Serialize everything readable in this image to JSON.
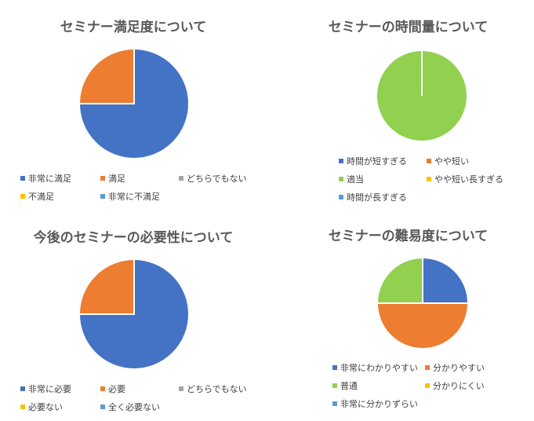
{
  "colors": {
    "blue": "#4472c4",
    "orange": "#ed7d31",
    "gray": "#a5a5a5",
    "yellow": "#ffc000",
    "lightblue": "#5b9bd5",
    "green": "#92d050"
  },
  "chart_data": [
    {
      "type": "pie",
      "title": "セミナー満足度について",
      "categories": [
        "非常に満足",
        "満足",
        "どちらでもない",
        "不満足",
        "非常に不満足"
      ],
      "values": [
        3,
        1,
        0,
        0,
        0
      ],
      "colors": [
        "#4472c4",
        "#ed7d31",
        "#a5a5a5",
        "#ffc000",
        "#5b9bd5"
      ],
      "legend_position": "bottom"
    },
    {
      "type": "pie",
      "title": "セミナーの時間量について",
      "categories": [
        "時間が短すぎる",
        "やや短い",
        "適当",
        "やや短い長すぎる",
        "時間が長すぎる"
      ],
      "values": [
        0,
        0,
        4,
        0,
        0
      ],
      "colors": [
        "#4472c4",
        "#ed7d31",
        "#92d050",
        "#ffc000",
        "#5b9bd5"
      ],
      "legend_position": "bottom"
    },
    {
      "type": "pie",
      "title": "今後のセミナーの必要性について",
      "categories": [
        "非常に必要",
        "必要",
        "どちらでもない",
        "必要ない",
        "全く必要ない"
      ],
      "values": [
        3,
        1,
        0,
        0,
        0
      ],
      "colors": [
        "#4472c4",
        "#ed7d31",
        "#a5a5a5",
        "#ffc000",
        "#5b9bd5"
      ],
      "legend_position": "bottom"
    },
    {
      "type": "pie",
      "title": "セミナーの難易度について",
      "categories": [
        "非常にわかりやすい",
        "分かりやすい",
        "普通",
        "分かりにくい",
        "非常に分かりずらい"
      ],
      "values": [
        1,
        2,
        1,
        0,
        0
      ],
      "colors": [
        "#4472c4",
        "#ed7d31",
        "#92d050",
        "#ffc000",
        "#5b9bd5"
      ],
      "legend_position": "bottom"
    }
  ]
}
